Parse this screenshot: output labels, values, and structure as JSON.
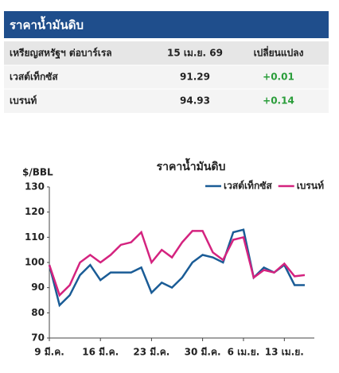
{
  "header": {
    "title": "ราคาน้ำมันดิบ"
  },
  "table": {
    "columns": [
      "เหรียญสหรัฐฯ ต่อบาร์เรล",
      "15 เม.ย. 69",
      "เปลี่ยนแปลง"
    ],
    "rows": [
      [
        "เวสต์เท็กซัส",
        "91.29",
        "+0.01"
      ],
      [
        "เบรนท์",
        "94.93",
        "+0.14"
      ]
    ]
  },
  "chart_data": {
    "type": "line",
    "title": "ราคาน้ำมันดิบ",
    "y_label": "$/BBL",
    "categories": [
      "9 มี.ค.",
      null,
      null,
      null,
      null,
      "16 มี.ค.",
      null,
      null,
      null,
      null,
      "23 มี.ค.",
      null,
      null,
      null,
      null,
      "30 มี.ค.",
      null,
      null,
      null,
      "6 เม.ย.",
      null,
      null,
      null,
      "13 เม.ย.",
      null,
      null
    ],
    "series": [
      {
        "name": "เวสต์เท็กซัส",
        "color": "#1a5c96",
        "values": [
          99,
          83,
          87,
          95,
          99,
          93,
          96,
          96,
          96,
          98,
          88,
          92,
          90,
          94,
          100,
          103,
          102,
          100,
          112,
          113,
          94,
          98,
          96,
          99,
          91,
          91
        ]
      },
      {
        "name": "เบรนท์",
        "color": "#d4237f",
        "values": [
          99,
          87,
          91,
          100,
          103,
          100,
          103,
          107,
          108,
          112,
          100,
          105,
          102,
          108,
          112.5,
          112.5,
          104,
          101,
          109,
          110,
          94,
          97,
          96,
          99.5,
          94.5,
          95
        ]
      }
    ],
    "ylim": [
      70,
      130
    ],
    "yticks": [
      70,
      80,
      90,
      100,
      110,
      120,
      130
    ],
    "legend": "top-right"
  }
}
